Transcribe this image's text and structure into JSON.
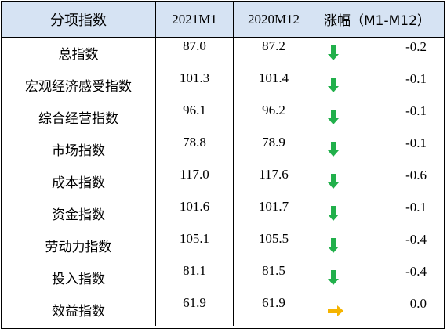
{
  "header": {
    "col_name": "分项指数",
    "col_current": "2021M1",
    "col_previous": "2020M12",
    "col_change": "涨幅（M1-M12）"
  },
  "rows": [
    {
      "name": "总指数",
      "current": "87.0",
      "previous": "87.2",
      "change": "-0.2",
      "trend_icon": "down-arrow-icon"
    },
    {
      "name": "宏观经济感受指数",
      "current": "101.3",
      "previous": "101.4",
      "change": "-0.1",
      "trend_icon": "down-arrow-icon"
    },
    {
      "name": "综合经营指数",
      "current": "96.1",
      "previous": "96.2",
      "change": "-0.1",
      "trend_icon": "down-arrow-icon"
    },
    {
      "name": "市场指数",
      "current": "78.8",
      "previous": "78.9",
      "change": "-0.1",
      "trend_icon": "down-arrow-icon"
    },
    {
      "name": "成本指数",
      "current": "117.0",
      "previous": "117.6",
      "change": "-0.6",
      "trend_icon": "down-arrow-icon"
    },
    {
      "name": "资金指数",
      "current": "101.6",
      "previous": "101.7",
      "change": "-0.1",
      "trend_icon": "down-arrow-icon"
    },
    {
      "name": "劳动力指数",
      "current": "105.1",
      "previous": "105.5",
      "change": "-0.4",
      "trend_icon": "down-arrow-icon"
    },
    {
      "name": "投入指数",
      "current": "81.1",
      "previous": "81.5",
      "change": "-0.4",
      "trend_icon": "down-arrow-icon"
    },
    {
      "name": "效益指数",
      "current": "61.9",
      "previous": "61.9",
      "change": "0.0",
      "trend_icon": "right-arrow-icon"
    }
  ],
  "colors": {
    "header_bg": "#d6e3f3",
    "down_arrow": "#21b04b",
    "flat_arrow": "#f5b400"
  }
}
